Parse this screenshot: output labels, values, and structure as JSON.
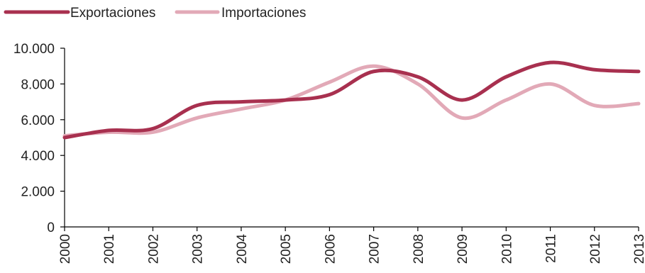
{
  "chart_data": {
    "type": "line",
    "title": "",
    "xlabel": "",
    "ylabel": "",
    "x": [
      "2000",
      "2001",
      "2002",
      "2003",
      "2004",
      "2005",
      "2006",
      "2007",
      "2008",
      "2009",
      "2010",
      "2011",
      "2012",
      "2013"
    ],
    "ylim": [
      0,
      10000
    ],
    "yticks": [
      0,
      2000,
      4000,
      6000,
      8000,
      10000
    ],
    "ytick_labels": [
      "0",
      "2.000",
      "4.000",
      "6.000",
      "8.000",
      "10.000"
    ],
    "legend_position": "top-left",
    "grid": false,
    "series": [
      {
        "name": "Exportaciones",
        "color": "#a8304f",
        "values": [
          5000,
          5400,
          5500,
          6800,
          7000,
          7100,
          7400,
          8700,
          8400,
          7100,
          8400,
          9200,
          8800,
          8700
        ]
      },
      {
        "name": "Importaciones",
        "color": "#e2a9b7",
        "values": [
          5100,
          5300,
          5300,
          6100,
          6600,
          7100,
          8100,
          9000,
          8000,
          6100,
          7100,
          8000,
          6800,
          6900
        ]
      }
    ]
  }
}
